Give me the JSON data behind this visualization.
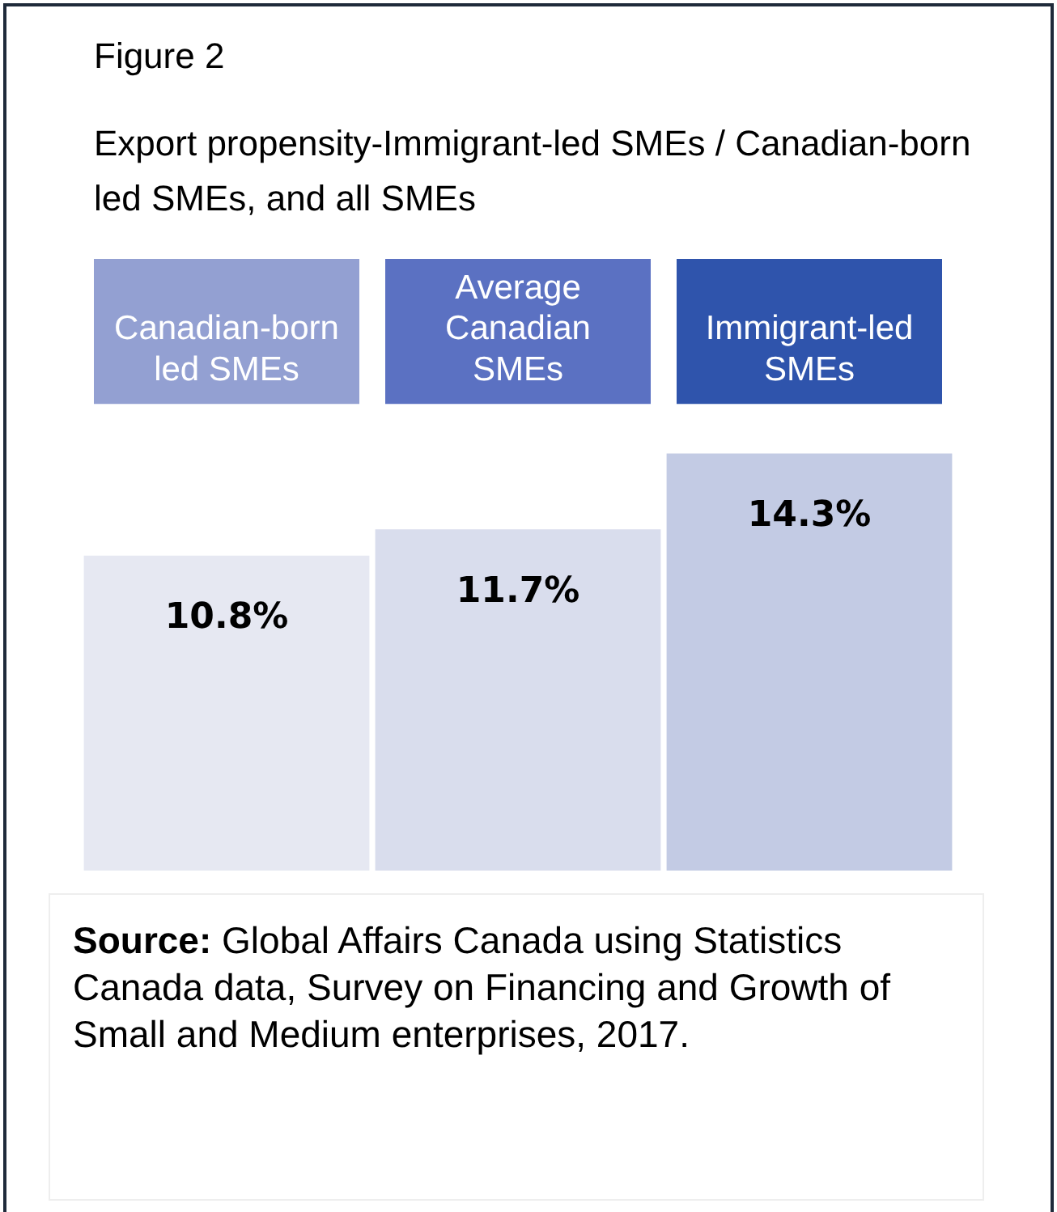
{
  "chart_data": {
    "type": "bar",
    "title": "Export propensity-Immigrant-led SMEs / Canadian-born led SMEs, and all SMEs",
    "categories": [
      "Canadian-born led SMEs",
      "Average Canadian SMEs",
      "Immigrant-led SMEs"
    ],
    "values": [
      10.8,
      11.7,
      14.3
    ],
    "colors": [
      "#e6e8f2",
      "#d9dded",
      "#c3cbe4"
    ],
    "value_labels": [
      "10.8%",
      "11.7%",
      "14.3%"
    ],
    "annotations": [
      "Figure 2",
      "Source: Global Affairs Canada using Statistics Canada data, Survey on Financing and Growth of Small and Medium enterprises, 2017."
    ],
    "legend": false,
    "grid": false
  }
}
